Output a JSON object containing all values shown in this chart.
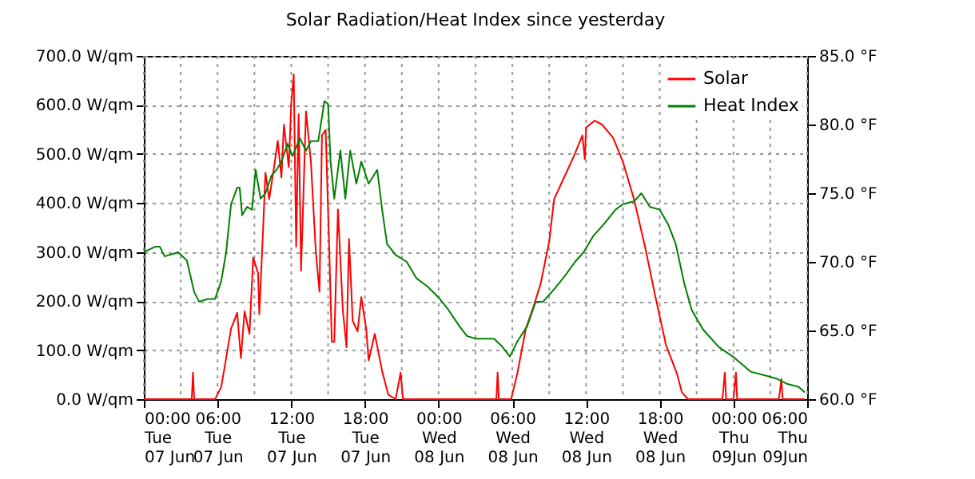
{
  "chart_data": {
    "type": "line",
    "title": "Solar Radiation/Heat Index since yesterday",
    "series": [
      {
        "name": "Solar",
        "color": "#ff0000",
        "x": [
          "--06-07T00:00",
          "--06-07T03:54",
          "--06-07T04:00",
          "--06-07T04:06",
          "--06-07T05:48",
          "--06-07T06:18",
          "--06-07T06:42",
          "--06-07T07:06",
          "--06-07T07:36",
          "--06-07T07:54",
          "--06-07T08:12",
          "--06-07T08:36",
          "--06-07T08:54",
          "--06-07T09:18",
          "--06-07T09:24",
          "--06-07T09:42",
          "--06-07T09:54",
          "--06-07T10:12",
          "--06-07T10:36",
          "--06-07T10:54",
          "--06-07T11:12",
          "--06-07T11:24",
          "--06-07T11:48",
          "--06-07T12:00",
          "--06-07T12:12",
          "--06-07T12:24",
          "--06-07T12:36",
          "--06-07T12:48",
          "--06-07T13:12",
          "--06-07T13:36",
          "--06-07T14:00",
          "--06-07T14:18",
          "--06-07T14:30",
          "--06-07T14:48",
          "--06-07T15:06",
          "--06-07T15:18",
          "--06-07T15:30",
          "--06-07T15:48",
          "--06-07T16:12",
          "--06-07T16:30",
          "--06-07T16:42",
          "--06-07T17:00",
          "--06-07T17:24",
          "--06-07T17:42",
          "--06-07T18:06",
          "--06-07T18:18",
          "--06-07T18:48",
          "--06-07T19:06",
          "--06-07T19:24",
          "--06-07T19:54",
          "--06-07T20:30",
          "--06-07T20:54",
          "--06-07T21:06",
          "--06-08T04:42",
          "--06-08T04:48",
          "--06-08T04:54",
          "--06-08T05:54",
          "--06-08T06:24",
          "--06-08T07:06",
          "--06-08T07:42",
          "--06-08T08:18",
          "--06-08T09:00",
          "--06-08T09:24",
          "--06-08T10:06",
          "--06-08T11:00",
          "--06-08T11:42",
          "--06-08T11:54",
          "--06-08T12:00",
          "--06-08T12:42",
          "--06-08T13:18",
          "--06-08T14:12",
          "--06-08T15:00",
          "--06-08T15:54",
          "--06-08T16:48",
          "--06-08T17:36",
          "--06-08T18:30",
          "--06-08T19:24",
          "--06-08T19:48",
          "--06-08T20:18",
          "--06-08T23:06",
          "--06-08T23:18",
          "--06-08T23:24",
          "--06-09T00:00",
          "--06-09T00:12",
          "--06-09T00:18",
          "--06-09T03:42",
          "--06-09T03:54",
          "--06-09T04:00",
          "--06-09T05:48"
        ],
        "values": [
          0,
          0,
          54,
          0,
          0,
          25,
          84,
          144,
          176,
          84,
          179,
          133,
          289,
          257,
          173,
          343,
          462,
          408,
          473,
          527,
          452,
          560,
          473,
          603,
          662,
          311,
          581,
          262,
          587,
          484,
          300,
          219,
          538,
          549,
          300,
          117,
          117,
          387,
          181,
          106,
          327,
          160,
          138,
          208,
          144,
          79,
          133,
          95,
          57,
          9,
          0,
          54,
          0,
          0,
          54,
          0,
          0,
          52,
          144,
          187,
          235,
          322,
          408,
          446,
          495,
          538,
          489,
          554,
          568,
          560,
          533,
          484,
          408,
          311,
          214,
          111,
          52,
          14,
          0,
          0,
          54,
          0,
          0,
          54,
          0,
          0,
          41,
          0,
          0
        ]
      },
      {
        "name": "Heat Index",
        "color": "#008000",
        "axis": "y2",
        "x": [
          "--06-07T00:00",
          "--06-07T00:54",
          "--06-07T01:18",
          "--06-07T01:42",
          "--06-07T02:48",
          "--06-07T03:30",
          "--06-07T04:06",
          "--06-07T04:30",
          "--06-07T05:12",
          "--06-07T05:48",
          "--06-07T06:18",
          "--06-07T06:42",
          "--06-07T07:06",
          "--06-07T07:36",
          "--06-07T07:48",
          "--06-07T08:00",
          "--06-07T08:24",
          "--06-07T08:48",
          "--06-07T09:06",
          "--06-07T09:30",
          "--06-07T09:54",
          "--06-07T10:24",
          "--06-07T10:48",
          "--06-07T11:12",
          "--06-07T11:42",
          "--06-07T12:06",
          "--06-07T12:42",
          "--06-07T13:12",
          "--06-07T13:36",
          "--06-07T14:12",
          "--06-07T14:42",
          "--06-07T15:00",
          "--06-07T15:12",
          "--06-07T15:30",
          "--06-07T16:00",
          "--06-07T16:24",
          "--06-07T16:48",
          "--06-07T17:18",
          "--06-07T17:42",
          "--06-07T18:18",
          "--06-07T19:00",
          "--06-07T19:24",
          "--06-07T19:48",
          "--06-07T20:30",
          "--06-07T21:24",
          "--06-07T22:12",
          "--06-07T23:06",
          "--06-08T00:00",
          "--06-08T00:48",
          "--06-08T01:42",
          "--06-08T02:18",
          "--06-08T03:00",
          "--06-08T03:54",
          "--06-08T04:30",
          "--06-08T05:06",
          "--06-08T05:48",
          "--06-08T06:24",
          "--06-08T07:12",
          "--06-08T07:54",
          "--06-08T08:30",
          "--06-08T09:24",
          "--06-08T10:18",
          "--06-08T11:06",
          "--06-08T11:48",
          "--06-08T12:36",
          "--06-08T13:30",
          "--06-08T14:24",
          "--06-08T15:00",
          "--06-08T15:54",
          "--06-08T16:30",
          "--06-08T17:12",
          "--06-08T18:00",
          "--06-08T18:42",
          "--06-08T19:18",
          "--06-08T20:00",
          "--06-08T20:36",
          "--06-08T21:30",
          "--06-08T22:48",
          "--06-09T00:06",
          "--06-09T01:24",
          "--06-09T02:42",
          "--06-09T03:30",
          "--06-09T04:24",
          "--06-09T05:18",
          "--06-09T05:48"
        ],
        "values": [
          70.7,
          71.1,
          71.1,
          70.4,
          70.7,
          70.1,
          67.8,
          67.1,
          67.3,
          67.3,
          68.6,
          70.7,
          74.2,
          75.4,
          75.4,
          73.4,
          74.0,
          73.8,
          76.7,
          74.6,
          75.0,
          76.3,
          76.7,
          77.3,
          78.6,
          77.7,
          79.0,
          78.1,
          78.8,
          78.8,
          81.7,
          81.5,
          77.3,
          74.6,
          78.1,
          74.6,
          78.1,
          75.7,
          77.3,
          75.7,
          76.7,
          73.8,
          71.3,
          70.5,
          70.0,
          68.8,
          68.2,
          67.4,
          66.5,
          65.3,
          64.6,
          64.4,
          64.4,
          64.4,
          63.9,
          63.1,
          64.2,
          65.3,
          67.1,
          67.1,
          68.0,
          69.0,
          70.0,
          70.7,
          71.9,
          72.8,
          73.8,
          74.2,
          74.4,
          75.0,
          74.0,
          73.8,
          72.7,
          71.3,
          68.4,
          66.5,
          65.1,
          63.8,
          63.0,
          62.0,
          61.7,
          61.5,
          61.1,
          60.9,
          60.5
        ]
      }
    ],
    "xlim": [
      "--06-07T00:00",
      "--06-09T06:00"
    ],
    "xticks": [
      {
        "value": "--06-07T00:00",
        "label": "00:00\nTue\n07 Jun"
      },
      {
        "value": "--06-07T03:00",
        "label": null
      },
      {
        "value": "--06-07T06:00",
        "label": "06:00\nTue\n07 Jun"
      },
      {
        "value": "--06-07T09:00",
        "label": null
      },
      {
        "value": "--06-07T12:00",
        "label": "12:00\nTue\n07 Jun"
      },
      {
        "value": "--06-07T15:00",
        "label": null
      },
      {
        "value": "--06-07T18:00",
        "label": "18:00\nTue\n07 Jun"
      },
      {
        "value": "--06-07T21:00",
        "label": null
      },
      {
        "value": "--06-08T00:00",
        "label": "00:00\nWed\n08 Jun"
      },
      {
        "value": "--06-08T03:00",
        "label": null
      },
      {
        "value": "--06-08T06:00",
        "label": "06:00\nWed\n08 Jun"
      },
      {
        "value": "--06-08T09:00",
        "label": null
      },
      {
        "value": "--06-08T12:00",
        "label": "12:00\nWed\n08 Jun"
      },
      {
        "value": "--06-08T15:00",
        "label": null
      },
      {
        "value": "--06-08T18:00",
        "label": "18:00\nWed\n08 Jun"
      },
      {
        "value": "--06-08T21:00",
        "label": null
      },
      {
        "value": "--06-09T00:00",
        "label": "00:00\nThu\n09Jun"
      },
      {
        "value": "--06-09T03:00",
        "label": null
      },
      {
        "value": "--06-09T06:00",
        "label": "06:00\nThu\n09Jun"
      }
    ],
    "ylim": [
      0,
      700
    ],
    "yticks": [
      {
        "value": 0,
        "label": "0.0 W/qm"
      },
      {
        "value": 100,
        "label": "100.0 W/qm"
      },
      {
        "value": 200,
        "label": "200.0 W/qm"
      },
      {
        "value": 300,
        "label": "300.0 W/qm"
      },
      {
        "value": 400,
        "label": "400.0 W/qm"
      },
      {
        "value": 500,
        "label": "500.0 W/qm"
      },
      {
        "value": 600,
        "label": "600.0 W/qm"
      },
      {
        "value": 700,
        "label": "700.0 W/qm"
      }
    ],
    "y2lim": [
      60,
      85
    ],
    "y2ticks": [
      {
        "value": 60,
        "label": "60.0 °F"
      },
      {
        "value": 65,
        "label": "65.0 °F"
      },
      {
        "value": 70,
        "label": "70.0 °F"
      },
      {
        "value": 75,
        "label": "75.0 °F"
      },
      {
        "value": 80,
        "label": "80.0 °F"
      },
      {
        "value": 85,
        "label": "85.0 °F"
      }
    ],
    "grid": true,
    "legend": "top right",
    "marker": "none",
    "line_style": "solid"
  }
}
